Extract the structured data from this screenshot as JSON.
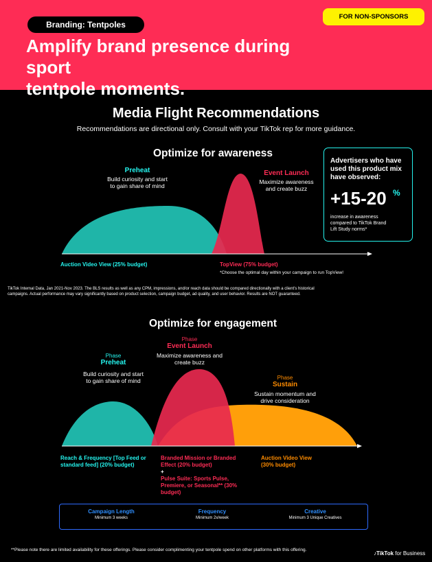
{
  "header": {
    "pill": "Branding: Tentpoles",
    "badge": "FOR NON-SPONSORS",
    "headline_1": "Amplify brand presence during sport",
    "headline_2": "tentpole moments."
  },
  "main": {
    "title": "Media Flight Recommendations",
    "subtitle": "Recommendations are directional only. Consult with your TikTok rep for more guidance."
  },
  "awareness": {
    "title": "Optimize for awareness",
    "preheat": {
      "name": "Preheat",
      "desc_1": "Build curiosity and start",
      "desc_2": "to gain share of mind"
    },
    "launch": {
      "name": "Event Launch",
      "desc_1": "Maximize awareness",
      "desc_2": "and create buzz"
    },
    "budget_left": "Auction Video View (25% budget)",
    "budget_right": "TopView (75% budget)",
    "budget_note": "*Choose the optimal day within your campaign to run TopView!",
    "disclaimer_1": "TikTok Internal Data, Jan 2021-Nov 2023. The BLS results as well as any CPM, impressions, and/or reach data should be compared directionally with a client's historical",
    "disclaimer_2": "campaigns. Actual performance may vary significantly based on product selection, campaign budget, ad quality, and user behavior. Results are NOT guaranteed."
  },
  "stat": {
    "head_1": "Advertisers who have",
    "head_2": "used this product mix",
    "head_3": "have observed:",
    "value": "+15-20",
    "unit": "%",
    "foot_1": "increase in awareness",
    "foot_2": "compared to TikTok Brand",
    "foot_3": "Lift Study norms*"
  },
  "engagement": {
    "title": "Optimize for engagement",
    "preheat": {
      "label": "Phase",
      "name": "Preheat",
      "desc_1": "Build curiosity and start",
      "desc_2": "to gain share of mind"
    },
    "launch": {
      "label": "Phase",
      "name": "Event Launch",
      "desc_1": "Maximize awareness and",
      "desc_2": "create buzz"
    },
    "sustain": {
      "label": "Phase",
      "name": "Sustain",
      "desc_1": "Sustain momentum and",
      "desc_2": "drive consideration"
    },
    "budget_left_1": "Reach & Frequency [Top Feed or",
    "budget_left_2": "standard feed] (20% budget)",
    "budget_mid_1": "Branded Mission or Branded",
    "budget_mid_2": "Effect (20% budget)",
    "budget_mid_plus": "+",
    "budget_mid_3": "Pulse Suite: Sports Pulse,",
    "budget_mid_4": "Premiere, or Seasonal** (30%",
    "budget_mid_5": "budget)",
    "budget_right_1": "Auction Video View",
    "budget_right_2": "(30% budget)"
  },
  "summary": {
    "length_label": "Campaign Length",
    "length_value": "Minimum 3 weeks",
    "freq_label": "Frequency",
    "freq_value": "Minimum 2x/week",
    "creative_label": "Creative",
    "creative_value": "Minimum 3 Unique Creatives"
  },
  "footer": {
    "note": "**Please note there are limited availability for these offerings. Please consider complimenting your tentpole spend on other platforms with this offering.",
    "brand_bold": "TikTok",
    "brand_rest": " for Business"
  },
  "colors": {
    "accent": "#fe2c55",
    "teal": "#25f4ee",
    "orange": "#ff8c00",
    "yellow": "#fef200",
    "blue": "#2f6bff"
  }
}
